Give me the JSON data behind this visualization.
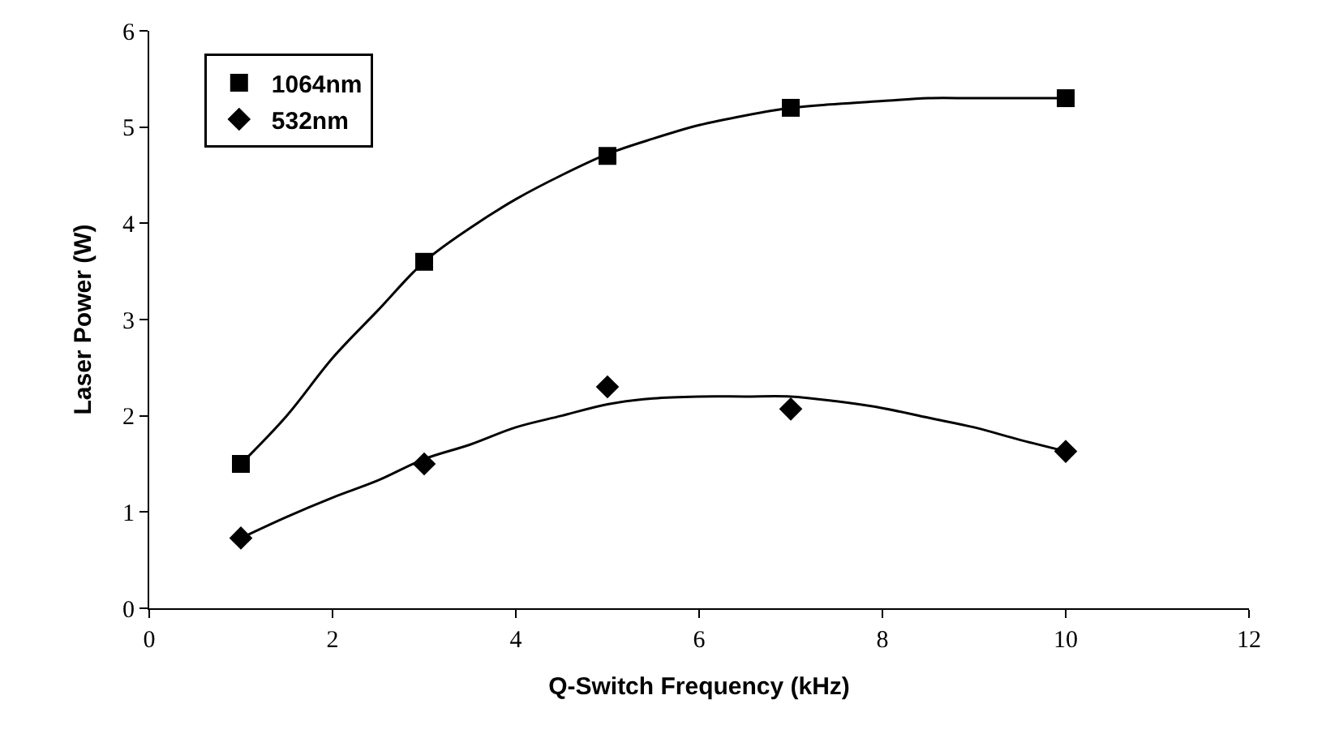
{
  "chart_data": {
    "type": "scatter",
    "xlabel": "Q-Switch Frequency (kHz)",
    "ylabel": "Laser Power (W)",
    "xlim": [
      0,
      12
    ],
    "xticks": [
      0,
      2,
      4,
      6,
      8,
      10,
      12
    ],
    "ylim": [
      0,
      6
    ],
    "yticks": [
      0,
      1,
      2,
      3,
      4,
      5,
      6
    ],
    "legend": "top left",
    "series": [
      {
        "name": "1064nm",
        "color": "#000000",
        "marker": "square",
        "x": [
          1,
          3,
          5,
          7,
          10
        ],
        "values": [
          1.5,
          3.6,
          4.7,
          5.2,
          5.3
        ]
      },
      {
        "name": "532nm",
        "color": "#000000",
        "marker": "diamond",
        "x": [
          1,
          3,
          5,
          7,
          10
        ],
        "values": [
          0.73,
          1.5,
          2.3,
          2.07,
          1.63
        ]
      },
      {
        "type": "line",
        "color": "#000000",
        "marker": "none",
        "x": [
          1,
          1.5,
          2,
          2.5,
          3,
          3.5,
          4,
          4.5,
          5,
          5.5,
          6,
          6.5,
          7,
          7.5,
          8,
          8.5,
          9,
          10
        ],
        "values": [
          1.5,
          2.0,
          2.6,
          3.1,
          3.6,
          3.95,
          4.25,
          4.5,
          4.72,
          4.88,
          5.02,
          5.12,
          5.2,
          5.24,
          5.27,
          5.3,
          5.3,
          5.3
        ]
      },
      {
        "type": "line",
        "color": "#000000",
        "marker": "none",
        "x": [
          1,
          1.5,
          2,
          2.5,
          3,
          3.5,
          4,
          4.5,
          5,
          5.5,
          6,
          6.5,
          7,
          7.5,
          8,
          8.5,
          9,
          9.5,
          10
        ],
        "values": [
          0.73,
          0.95,
          1.15,
          1.33,
          1.55,
          1.7,
          1.88,
          2.0,
          2.12,
          2.18,
          2.2,
          2.2,
          2.2,
          2.15,
          2.08,
          1.98,
          1.88,
          1.75,
          1.63
        ]
      }
    ]
  }
}
